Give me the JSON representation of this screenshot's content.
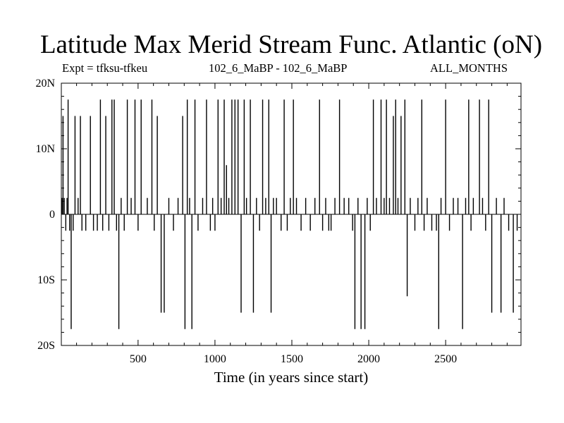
{
  "title": "Latitude Max Merid Stream Func. Atlantic (oN)",
  "subtitle_left": "Expt = tfksu-tfkeu",
  "subtitle_center": "102_6_MaBP - 102_6_MaBP",
  "subtitle_right": "ALL_MONTHS",
  "chart_data": {
    "type": "line",
    "title": "Latitude Max Merid Stream Func. Atlantic (oN)",
    "xlabel": "Time (in years since start)",
    "ylabel": "",
    "xlim": [
      1,
      2990
    ],
    "ylim": [
      -20,
      20
    ],
    "x_ticks": [
      {
        "value": 500,
        "label": "500"
      },
      {
        "value": 1000,
        "label": "1000"
      },
      {
        "value": 1500,
        "label": "1500"
      },
      {
        "value": 2000,
        "label": "2000"
      },
      {
        "value": 2500,
        "label": "2500"
      }
    ],
    "y_ticks": [
      {
        "value": 20,
        "label": "20N"
      },
      {
        "value": 10,
        "label": "10N"
      },
      {
        "value": 0,
        "label": "0"
      },
      {
        "value": -10,
        "label": "10S"
      },
      {
        "value": -20,
        "label": "20S"
      }
    ],
    "grid": false,
    "series": [
      {
        "spikes": [
          [
            5,
            2.5
          ],
          [
            12,
            15
          ],
          [
            20,
            2.5
          ],
          [
            30,
            -2.5
          ],
          [
            38,
            2.5
          ],
          [
            45,
            17.5
          ],
          [
            55,
            -2.5
          ],
          [
            65,
            -17.5
          ],
          [
            78,
            -2.5
          ],
          [
            90,
            15
          ],
          [
            110,
            2.5
          ],
          [
            125,
            15
          ],
          [
            135,
            -2.5
          ],
          [
            160,
            -2.5
          ],
          [
            190,
            15
          ],
          [
            210,
            -2.5
          ],
          [
            235,
            -2.5
          ],
          [
            255,
            17.5
          ],
          [
            270,
            -2.5
          ],
          [
            290,
            15
          ],
          [
            310,
            -2.5
          ],
          [
            330,
            17.5
          ],
          [
            345,
            17.5
          ],
          [
            360,
            -2.5
          ],
          [
            375,
            -17.5
          ],
          [
            390,
            2.5
          ],
          [
            410,
            -2.5
          ],
          [
            430,
            17.5
          ],
          [
            455,
            2.5
          ],
          [
            480,
            17.5
          ],
          [
            500,
            -2.5
          ],
          [
            520,
            17.5
          ],
          [
            560,
            2.5
          ],
          [
            590,
            17.5
          ],
          [
            605,
            -2.5
          ],
          [
            625,
            15
          ],
          [
            650,
            -15
          ],
          [
            670,
            -15
          ],
          [
            700,
            2.5
          ],
          [
            730,
            -2.5
          ],
          [
            760,
            2.5
          ],
          [
            790,
            15
          ],
          [
            805,
            -17.5
          ],
          [
            820,
            17.5
          ],
          [
            835,
            2.5
          ],
          [
            850,
            -17.5
          ],
          [
            870,
            17.5
          ],
          [
            890,
            -2.5
          ],
          [
            920,
            2.5
          ],
          [
            945,
            17.5
          ],
          [
            970,
            -2.5
          ],
          [
            985,
            2.5
          ],
          [
            1000,
            -2.5
          ],
          [
            1020,
            17.5
          ],
          [
            1040,
            2.5
          ],
          [
            1060,
            17.5
          ],
          [
            1075,
            7.5
          ],
          [
            1090,
            2.5
          ],
          [
            1110,
            17.5
          ],
          [
            1130,
            17.5
          ],
          [
            1150,
            17.5
          ],
          [
            1170,
            -15
          ],
          [
            1190,
            17.5
          ],
          [
            1205,
            2.5
          ],
          [
            1230,
            17.5
          ],
          [
            1250,
            -15
          ],
          [
            1270,
            2.5
          ],
          [
            1290,
            -2.5
          ],
          [
            1310,
            17.5
          ],
          [
            1330,
            2.5
          ],
          [
            1350,
            17.5
          ],
          [
            1365,
            -15
          ],
          [
            1380,
            2.5
          ],
          [
            1400,
            2.5
          ],
          [
            1430,
            -2.5
          ],
          [
            1450,
            17.5
          ],
          [
            1470,
            -2.5
          ],
          [
            1490,
            2.5
          ],
          [
            1510,
            17.5
          ],
          [
            1530,
            2.5
          ],
          [
            1560,
            -2.5
          ],
          [
            1590,
            2.5
          ],
          [
            1620,
            -2.5
          ],
          [
            1650,
            2.5
          ],
          [
            1680,
            17.5
          ],
          [
            1700,
            -2.5
          ],
          [
            1720,
            2.5
          ],
          [
            1740,
            -2.5
          ],
          [
            1755,
            -2.5
          ],
          [
            1780,
            2.5
          ],
          [
            1810,
            17.5
          ],
          [
            1840,
            2.5
          ],
          [
            1870,
            2.5
          ],
          [
            1895,
            -2.5
          ],
          [
            1910,
            -17.5
          ],
          [
            1930,
            2.5
          ],
          [
            1950,
            -17.5
          ],
          [
            1975,
            -17.5
          ],
          [
            1990,
            2.5
          ],
          [
            2010,
            -2.5
          ],
          [
            2030,
            17.5
          ],
          [
            2050,
            2.5
          ],
          [
            2080,
            17.5
          ],
          [
            2100,
            2.5
          ],
          [
            2115,
            17.5
          ],
          [
            2135,
            2.5
          ],
          [
            2160,
            15
          ],
          [
            2175,
            17.5
          ],
          [
            2190,
            2.5
          ],
          [
            2210,
            15
          ],
          [
            2235,
            17.5
          ],
          [
            2250,
            -12.5
          ],
          [
            2270,
            2.5
          ],
          [
            2300,
            -2.5
          ],
          [
            2320,
            2.5
          ],
          [
            2345,
            17.5
          ],
          [
            2360,
            -2.5
          ],
          [
            2380,
            2.5
          ],
          [
            2410,
            -2.5
          ],
          [
            2440,
            -2.5
          ],
          [
            2455,
            -17.5
          ],
          [
            2470,
            2.5
          ],
          [
            2500,
            17.5
          ],
          [
            2525,
            -2.5
          ],
          [
            2550,
            2.5
          ],
          [
            2580,
            2.5
          ],
          [
            2610,
            -17.5
          ],
          [
            2630,
            2.5
          ],
          [
            2650,
            17.5
          ],
          [
            2665,
            -2.5
          ],
          [
            2680,
            2.5
          ],
          [
            2720,
            17.5
          ],
          [
            2740,
            2.5
          ],
          [
            2760,
            -2.5
          ],
          [
            2780,
            17.5
          ],
          [
            2800,
            -15
          ],
          [
            2830,
            2.5
          ],
          [
            2860,
            -15
          ],
          [
            2880,
            2.5
          ],
          [
            2910,
            -2.5
          ],
          [
            2940,
            -15
          ],
          [
            2965,
            -2.5
          ]
        ]
      }
    ]
  }
}
